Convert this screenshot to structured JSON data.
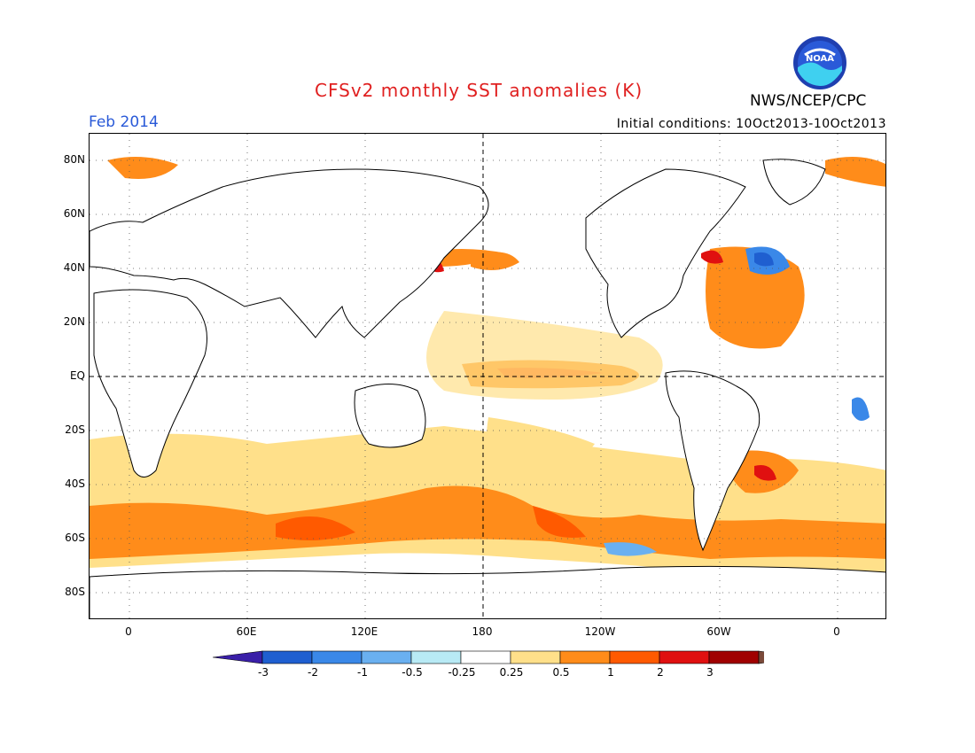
{
  "header": {
    "title": "CFSv2 monthly SST anomalies (K)",
    "agency": "NWS/NCEP/CPC",
    "month": "Feb 2014",
    "initial_conditions": "Initial conditions: 10Oct2013-10Oct2013",
    "logo_text": "NOAA"
  },
  "map": {
    "lat_labels": [
      "80N",
      "60N",
      "40N",
      "20N",
      "EQ",
      "20S",
      "40S",
      "60S",
      "80S"
    ],
    "lon_labels": [
      "0",
      "60E",
      "120E",
      "180",
      "120W",
      "60W",
      "0"
    ]
  },
  "colorbar": {
    "labels": [
      "-3",
      "-2",
      "-1",
      "-0.5",
      "-0.25",
      "0.25",
      "0.5",
      "1",
      "2",
      "3"
    ],
    "colors": [
      "#3a1fa8",
      "#1f5fd0",
      "#3a88e8",
      "#6ab0f0",
      "#b8eaf5",
      "#ffffff",
      "#ffe08a",
      "#ff8c1a",
      "#ff5a00",
      "#e01010",
      "#a00000",
      "#7a4a3a"
    ]
  }
}
